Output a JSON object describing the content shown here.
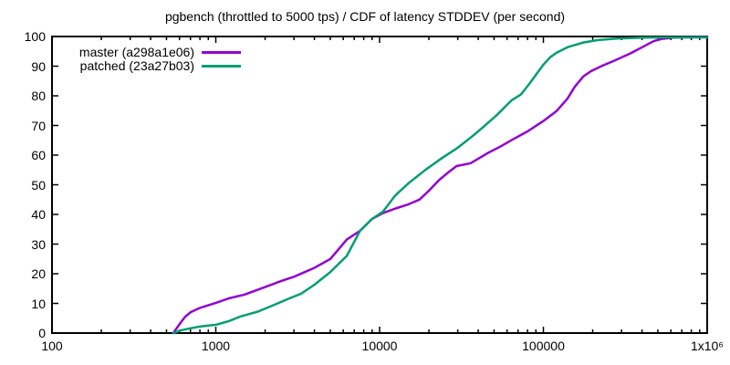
{
  "title": "pgbench (throttled to 5000 tps) / CDF of latency STDDEV (per second)",
  "chart_data": {
    "type": "line",
    "title": "pgbench (throttled to 5000 tps) / CDF of latency STDDEV (per second)",
    "xlabel": "",
    "ylabel": "",
    "x_axis": {
      "scale": "log",
      "min": 100,
      "max": 1000000,
      "tick_values": [
        100,
        1000,
        10000,
        100000,
        1000000
      ],
      "tick_labels": [
        "100",
        "1000",
        "10000",
        "100000",
        "1x10⁶"
      ],
      "minor_ticks": "log-decades"
    },
    "y_axis": {
      "min": 0,
      "max": 100,
      "tick_step": 10,
      "tick_values": [
        0,
        10,
        20,
        30,
        40,
        50,
        60,
        70,
        80,
        90,
        100
      ],
      "tick_labels": [
        "0",
        "10",
        "20",
        "30",
        "40",
        "50",
        "60",
        "70",
        "80",
        "90",
        "100"
      ]
    },
    "grid": false,
    "legend_position": "top-left",
    "border_color": "#000000",
    "text_color": "#000000",
    "series": [
      {
        "name": "master (a298a1e06)",
        "color": "#9400d3",
        "points": [
          [
            550,
            0
          ],
          [
            600,
            3
          ],
          [
            650,
            5.5
          ],
          [
            700,
            7
          ],
          [
            800,
            8.5
          ],
          [
            1000,
            10.2
          ],
          [
            1200,
            11.7
          ],
          [
            1500,
            13
          ],
          [
            2000,
            15.5
          ],
          [
            2500,
            17.5
          ],
          [
            3000,
            19
          ],
          [
            4000,
            22
          ],
          [
            5000,
            25
          ],
          [
            6300,
            31.5
          ],
          [
            7600,
            34.5
          ],
          [
            9000,
            38.5
          ],
          [
            10500,
            40.5
          ],
          [
            12500,
            42
          ],
          [
            15000,
            43.4
          ],
          [
            17500,
            45
          ],
          [
            20000,
            48
          ],
          [
            23000,
            51.5
          ],
          [
            26000,
            54
          ],
          [
            29500,
            56.3
          ],
          [
            36000,
            57.3
          ],
          [
            45000,
            60.5
          ],
          [
            55000,
            63
          ],
          [
            65000,
            65.3
          ],
          [
            80000,
            68
          ],
          [
            100000,
            71.5
          ],
          [
            120000,
            74.8
          ],
          [
            140000,
            79
          ],
          [
            155000,
            83
          ],
          [
            175000,
            86.5
          ],
          [
            195000,
            88.3
          ],
          [
            230000,
            90.2
          ],
          [
            270000,
            91.8
          ],
          [
            340000,
            94.3
          ],
          [
            420000,
            97
          ],
          [
            470000,
            98.4
          ],
          [
            530000,
            99.2
          ],
          [
            620000,
            99.6
          ],
          [
            800000,
            99.8
          ],
          [
            1000000,
            99.8
          ]
        ]
      },
      {
        "name": "patched (23a27b03)",
        "color": "#009e73",
        "points": [
          [
            550,
            0
          ],
          [
            620,
            1
          ],
          [
            700,
            1.6
          ],
          [
            800,
            2.2
          ],
          [
            1000,
            2.8
          ],
          [
            1200,
            4
          ],
          [
            1400,
            5.5
          ],
          [
            1800,
            7.2
          ],
          [
            2200,
            9.2
          ],
          [
            2900,
            12
          ],
          [
            3300,
            13.2
          ],
          [
            4000,
            16.3
          ],
          [
            5000,
            20.6
          ],
          [
            6300,
            26
          ],
          [
            7600,
            34.5
          ],
          [
            9000,
            38.5
          ],
          [
            10500,
            41
          ],
          [
            12500,
            46.5
          ],
          [
            15000,
            50.5
          ],
          [
            19000,
            55
          ],
          [
            24000,
            59
          ],
          [
            30000,
            62.5
          ],
          [
            38000,
            67
          ],
          [
            45000,
            70.5
          ],
          [
            52000,
            73.5
          ],
          [
            64000,
            78.5
          ],
          [
            73000,
            80.5
          ],
          [
            82000,
            84
          ],
          [
            94000,
            88.5
          ],
          [
            100000,
            90.5
          ],
          [
            110000,
            93
          ],
          [
            120000,
            94.5
          ],
          [
            142000,
            96.5
          ],
          [
            176000,
            98
          ],
          [
            216000,
            98.8
          ],
          [
            280000,
            99.3
          ],
          [
            400000,
            99.6
          ],
          [
            600000,
            99.7
          ],
          [
            1000000,
            99.7
          ]
        ]
      }
    ]
  }
}
